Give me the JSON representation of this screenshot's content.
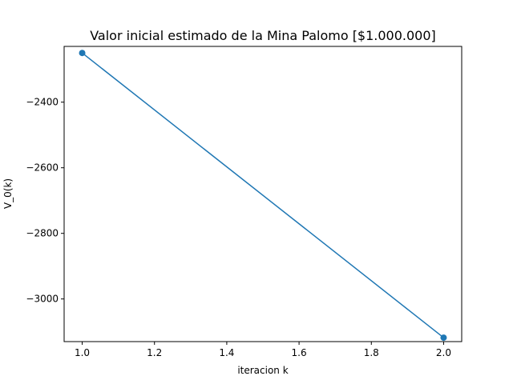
{
  "chart_data": {
    "type": "line",
    "title": "Valor inicial estimado de la Mina Palomo [$1.000.000]",
    "xlabel": "iteracion k",
    "ylabel": "V_0(k)",
    "xlim": [
      0.95,
      2.05
    ],
    "ylim": [
      -3130,
      -2230
    ],
    "xticks": [
      1.0,
      1.2,
      1.4,
      1.6,
      1.8,
      2.0
    ],
    "xtick_labels": [
      "1.0",
      "1.2",
      "1.4",
      "1.6",
      "1.8",
      "2.0"
    ],
    "yticks": [
      -2400,
      -2600,
      -2800,
      -3000
    ],
    "ytick_labels": [
      "−2400",
      "−2600",
      "−2800",
      "−3000"
    ],
    "grid": false,
    "series": [
      {
        "x": [
          1.0,
          2.0
        ],
        "y": [
          -2250,
          -3118
        ],
        "color": "#1f77b4",
        "marker": "circle"
      }
    ]
  }
}
